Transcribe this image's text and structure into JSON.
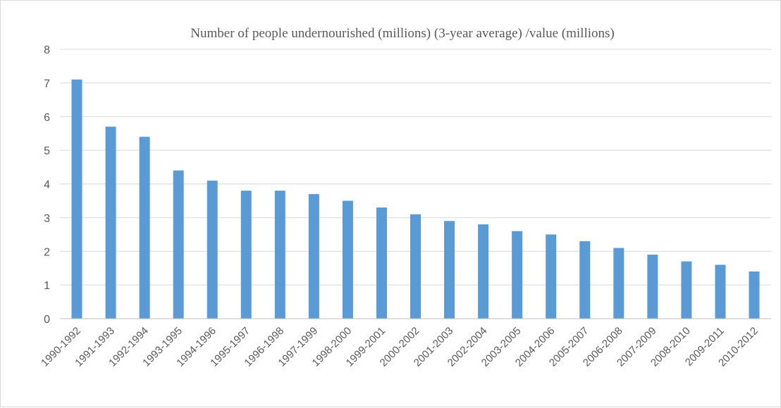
{
  "chart_data": {
    "type": "bar",
    "title": "Number of people undernourished (millions) (3-year average) /value (millions)",
    "xlabel": "",
    "ylabel": "",
    "ylim": [
      0,
      8
    ],
    "yticks": [
      0,
      1,
      2,
      3,
      4,
      5,
      6,
      7,
      8
    ],
    "grid": true,
    "bar_color": "#5b9bd5",
    "categories": [
      "1990-1992",
      "1991-1993",
      "1992-1994",
      "1993-1995",
      "1994-1996",
      "1995-1997",
      "1996-1998",
      "1997-1999",
      "1998-2000",
      "1999-2001",
      "2000-2002",
      "2001-2003",
      "2002-2004",
      "2003-2005",
      "2004-2006",
      "2005-2007",
      "2006-2008",
      "2007-2009",
      "2008-2010",
      "2009-2011",
      "2010-2012"
    ],
    "values": [
      7.1,
      5.7,
      5.4,
      4.4,
      4.1,
      3.8,
      3.8,
      3.7,
      3.5,
      3.3,
      3.1,
      2.9,
      2.8,
      2.6,
      2.5,
      2.3,
      2.1,
      1.9,
      1.7,
      1.6,
      1.4
    ]
  }
}
